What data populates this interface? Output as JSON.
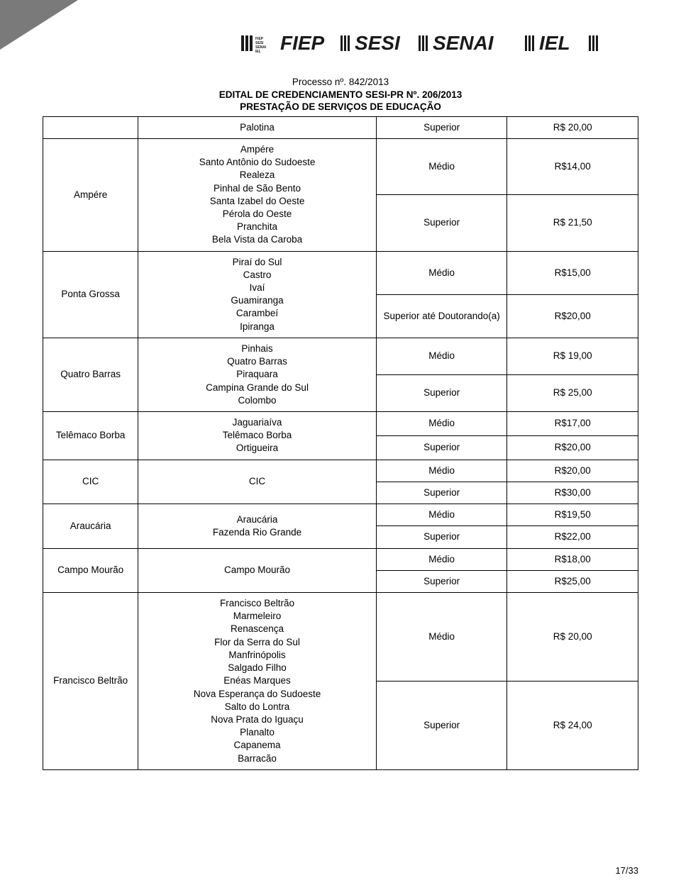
{
  "header": {
    "line1": "Processo nº. 842/2013",
    "line2": "EDITAL DE CREDENCIAMENTO SESI-PR Nº. 206/2013",
    "line3": "PRESTAÇÃO DE SERVIÇOS DE EDUCAÇÃO"
  },
  "page_number": "17/33",
  "colors": {
    "border": "#000000",
    "text": "#000000",
    "corner": "#7a7a7a",
    "logo": "#1a1a1a"
  },
  "logos": [
    "FIEP",
    "SESI",
    "SENAI",
    "IEL"
  ],
  "rows": [
    {
      "city": "",
      "locations": "Palotina",
      "level": "Superior",
      "value": "R$ 20,00"
    },
    {
      "city": "Ampére",
      "city_rowspan": 2,
      "locations": "Ampére\nSanto Antônio do Sudoeste\nRealeza\nPinhal de São Bento\nSanta Izabel do Oeste\nPérola do Oeste\nPranchita\nBela Vista da Caroba",
      "loc_rowspan": 2,
      "level": "Médio",
      "value": "R$14,00"
    },
    {
      "level": "Superior",
      "value": "R$ 21,50"
    },
    {
      "city": "Ponta Grossa",
      "city_rowspan": 2,
      "locations": "Piraí do Sul\nCastro\nIvaí\nGuamiranga\nCarambeí\nIpiranga",
      "loc_rowspan": 2,
      "level": "Médio",
      "value": "R$15,00"
    },
    {
      "level": "Superior até Doutorando(a)",
      "value": "R$20,00"
    },
    {
      "city": "Quatro Barras",
      "city_rowspan": 2,
      "locations": "Pinhais\nQuatro Barras\nPiraquara\nCampina Grande do Sul\nColombo",
      "loc_rowspan": 2,
      "level": "Médio",
      "value": "R$ 19,00"
    },
    {
      "level": "Superior",
      "value": "R$ 25,00"
    },
    {
      "city": "Telêmaco Borba",
      "city_rowspan": 2,
      "locations": "Jaguariaíva\nTelêmaco Borba\nOrtigueira",
      "loc_rowspan": 2,
      "level": "Médio",
      "value": "R$17,00"
    },
    {
      "level": "Superior",
      "value": "R$20,00"
    },
    {
      "city": "CIC",
      "city_rowspan": 2,
      "locations": "CIC",
      "loc_rowspan": 2,
      "level": "Médio",
      "value": "R$20,00"
    },
    {
      "level": "Superior",
      "value": "R$30,00"
    },
    {
      "city": "Araucária",
      "city_rowspan": 2,
      "locations": "Araucária\nFazenda Rio Grande",
      "loc_rowspan": 2,
      "level": "Médio",
      "value": "R$19,50"
    },
    {
      "level": "Superior",
      "value": "R$22,00"
    },
    {
      "city": "Campo Mourão",
      "city_rowspan": 2,
      "locations": "Campo Mourão",
      "loc_rowspan": 2,
      "level": "Médio",
      "value": "R$18,00"
    },
    {
      "level": "Superior",
      "value": "R$25,00"
    },
    {
      "city": "Francisco Beltrão",
      "city_rowspan": 2,
      "locations": "Francisco Beltrão\nMarmeleiro\nRenascença\nFlor da Serra do Sul\nManfrinópolis\nSalgado Filho\nEnéas Marques\nNova Esperança do Sudoeste\nSalto do Lontra\nNova Prata do Iguaçu\nPlanalto\nCapanema\nBarracão",
      "loc_rowspan": 2,
      "level": "Médio",
      "value": "R$ 20,00"
    },
    {
      "level": "Superior",
      "value": "R$ 24,00"
    }
  ]
}
